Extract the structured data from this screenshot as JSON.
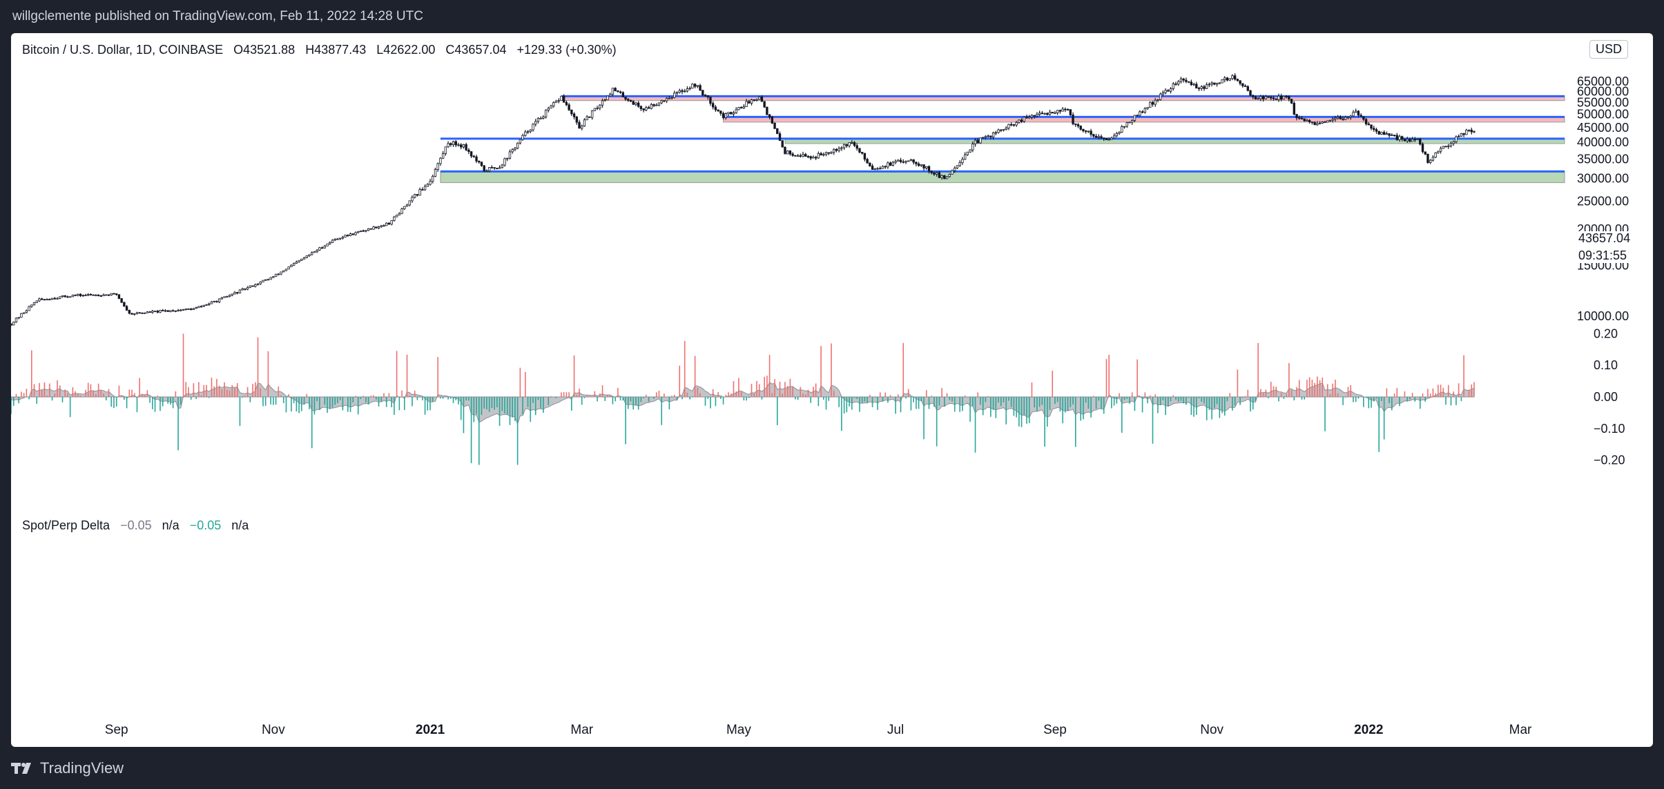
{
  "header": {
    "published": "willgclemente published on TradingView.com, Feb 11, 2022 14:28 UTC"
  },
  "footer": {
    "brand": "TradingView"
  },
  "chart": {
    "symbol": "Bitcoin / U.S. Dollar, 1D, COINBASE",
    "open": "O43521.88",
    "high": "H43877.43",
    "low": "L42622.00",
    "close": "C43657.04",
    "change": "+129.33 (+0.30%)",
    "currency": "USD",
    "last_price": "43657.04",
    "countdown": "09:31:55",
    "indicator_name": "Spot/Perp Delta",
    "indicator_v1": "−0.05",
    "indicator_na1": "n/a",
    "indicator_v2": "−0.05",
    "indicator_na2": "n/a"
  },
  "colors": {
    "candle": "#131722",
    "blue_line": "#2962ff",
    "red_zone": "#f4b8bc",
    "green_zone": "#b7d7b5",
    "hist_pos": "#ef6f6f",
    "hist_neg": "#26a69a",
    "area": "#a9abb1"
  },
  "chart_data": [
    {
      "type": "candlestick",
      "title": "Bitcoin / U.S. Dollar, 1D, COINBASE",
      "y_ticks": [
        "65000.00",
        "60000.00",
        "55000.00",
        "50000.00",
        "45000.00",
        "40000.00",
        "35000.00",
        "30000.00",
        "25000.00",
        "20000.00",
        "15000.00",
        "10000.00"
      ],
      "y_scale": "log",
      "x_ticks": [
        "Sep",
        "Nov",
        "2021",
        "Mar",
        "May",
        "Jul",
        "Sep",
        "Nov",
        "2022",
        "Mar"
      ],
      "x_tick_dates": [
        "2020-09-01",
        "2020-11-01",
        "2021-01-01",
        "2021-03-01",
        "2021-05-01",
        "2021-07-01",
        "2021-09-01",
        "2021-11-01",
        "2022-01-01",
        "2022-03-01"
      ],
      "date_range": [
        "2020-07-22",
        "2022-02-11"
      ],
      "anchor_closes": [
        [
          "2020-07-22",
          9400
        ],
        [
          "2020-08-01",
          11350
        ],
        [
          "2020-08-15",
          11800
        ],
        [
          "2020-09-01",
          11900
        ],
        [
          "2020-09-06",
          10200
        ],
        [
          "2020-10-01",
          10600
        ],
        [
          "2020-10-10",
          11300
        ],
        [
          "2020-11-01",
          13700
        ],
        [
          "2020-11-25",
          18500
        ],
        [
          "2020-12-16",
          21000
        ],
        [
          "2021-01-01",
          29500
        ],
        [
          "2021-01-08",
          40000
        ],
        [
          "2021-01-14",
          39000
        ],
        [
          "2021-01-22",
          32000
        ],
        [
          "2021-01-28",
          33000
        ],
        [
          "2021-02-08",
          44000
        ],
        [
          "2021-02-21",
          57500
        ],
        [
          "2021-02-28",
          45000
        ],
        [
          "2021-03-13",
          61000
        ],
        [
          "2021-03-25",
          52000
        ],
        [
          "2021-04-14",
          63500
        ],
        [
          "2021-04-25",
          49000
        ],
        [
          "2021-05-09",
          58000
        ],
        [
          "2021-05-19",
          37000
        ],
        [
          "2021-05-30",
          35500
        ],
        [
          "2021-06-14",
          40000
        ],
        [
          "2021-06-22",
          32500
        ],
        [
          "2021-07-07",
          35000
        ],
        [
          "2021-07-20",
          29800
        ],
        [
          "2021-08-01",
          40000
        ],
        [
          "2021-08-22",
          49000
        ],
        [
          "2021-09-06",
          52500
        ],
        [
          "2021-09-08",
          46000
        ],
        [
          "2021-09-21",
          40500
        ],
        [
          "2021-10-01",
          48000
        ],
        [
          "2021-10-15",
          61000
        ],
        [
          "2021-10-20",
          66000
        ],
        [
          "2021-10-28",
          61500
        ],
        [
          "2021-11-09",
          67500
        ],
        [
          "2021-11-18",
          57000
        ],
        [
          "2021-12-01",
          57200
        ],
        [
          "2021-12-04",
          48000
        ],
        [
          "2021-12-13",
          46000
        ],
        [
          "2021-12-27",
          50500
        ],
        [
          "2022-01-05",
          43000
        ],
        [
          "2022-01-10",
          41800
        ],
        [
          "2022-01-20",
          40500
        ],
        [
          "2022-01-24",
          34500
        ],
        [
          "2022-02-04",
          41500
        ],
        [
          "2022-02-09",
          44500
        ],
        [
          "2022-02-11",
          43657
        ]
      ],
      "resistance_lines": [
        57800,
        49000,
        41200,
        31700
      ],
      "supply_zones": [
        [
          55800,
          57800
        ],
        [
          47000,
          49000
        ]
      ],
      "demand_zones": [
        [
          39600,
          41200
        ],
        [
          29000,
          31700
        ]
      ]
    },
    {
      "type": "histogram",
      "title": "Spot/Perp Delta",
      "y_ticks": [
        "0.20",
        "0.10",
        "0.00",
        "−0.10",
        "−0.20"
      ],
      "value_range": [
        -0.22,
        0.2
      ]
    }
  ]
}
